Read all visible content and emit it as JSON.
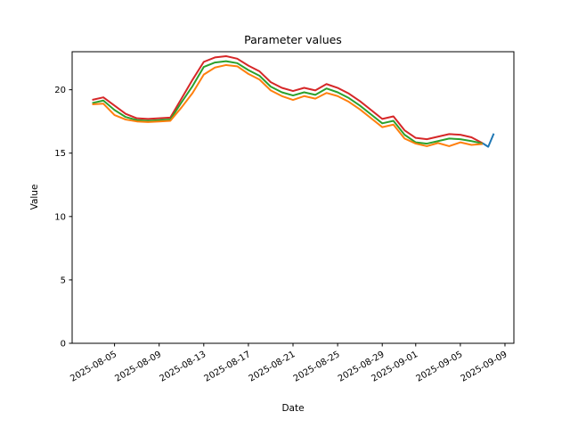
{
  "chart_data": {
    "type": "line",
    "title": "Parameter values",
    "xlabel": "Date",
    "ylabel": "Value",
    "ylim": [
      0,
      23
    ],
    "yticks": [
      0,
      5,
      10,
      15,
      20
    ],
    "xticks": [
      "2025-08-05",
      "2025-08-09",
      "2025-08-13",
      "2025-08-17",
      "2025-08-21",
      "2025-08-25",
      "2025-08-29",
      "2025-09-01",
      "2025-09-05",
      "2025-09-09"
    ],
    "xtick_rotation_deg": 30,
    "x_pad_days": 1.8,
    "grid": false,
    "legend": "none",
    "x_dates": [
      "2025-08-03",
      "2025-08-04",
      "2025-08-05",
      "2025-08-06",
      "2025-08-07",
      "2025-08-08",
      "2025-08-09",
      "2025-08-10",
      "2025-08-11",
      "2025-08-12",
      "2025-08-13",
      "2025-08-14",
      "2025-08-15",
      "2025-08-16",
      "2025-08-17",
      "2025-08-18",
      "2025-08-19",
      "2025-08-20",
      "2025-08-21",
      "2025-08-22",
      "2025-08-23",
      "2025-08-24",
      "2025-08-25",
      "2025-08-26",
      "2025-08-27",
      "2025-08-28",
      "2025-08-29",
      "2025-08-30",
      "2025-08-31",
      "2025-09-01",
      "2025-09-02",
      "2025-09-03",
      "2025-09-04",
      "2025-09-05",
      "2025-09-06",
      "2025-09-07"
    ],
    "series": [
      {
        "name": "red",
        "color": "#d62728",
        "values": [
          19.2,
          19.4,
          18.75,
          18.1,
          17.75,
          17.7,
          17.75,
          17.8,
          19.3,
          20.8,
          22.2,
          22.55,
          22.65,
          22.45,
          21.9,
          21.45,
          20.6,
          20.15,
          19.9,
          20.15,
          19.95,
          20.45,
          20.15,
          19.7,
          19.1,
          18.4,
          17.7,
          17.9,
          16.8,
          16.2,
          16.1,
          16.3,
          16.5,
          16.45,
          16.25,
          15.78
        ]
      },
      {
        "name": "green",
        "color": "#2ca02c",
        "values": [
          18.95,
          19.15,
          18.4,
          17.85,
          17.6,
          17.55,
          17.6,
          17.65,
          19.0,
          20.3,
          21.8,
          22.15,
          22.25,
          22.1,
          21.55,
          21.1,
          20.25,
          19.8,
          19.55,
          19.8,
          19.6,
          20.1,
          19.8,
          19.35,
          18.75,
          18.05,
          17.35,
          17.55,
          16.45,
          15.85,
          15.75,
          15.95,
          16.15,
          16.1,
          15.95,
          15.76
        ]
      },
      {
        "name": "orange",
        "color": "#ff7f0e",
        "values": [
          18.85,
          18.9,
          18.0,
          17.65,
          17.5,
          17.45,
          17.5,
          17.55,
          18.6,
          19.75,
          21.2,
          21.75,
          21.95,
          21.85,
          21.25,
          20.8,
          19.95,
          19.5,
          19.2,
          19.5,
          19.3,
          19.75,
          19.5,
          19.05,
          18.45,
          17.75,
          17.05,
          17.25,
          16.15,
          15.75,
          15.55,
          15.8,
          15.55,
          15.85,
          15.65,
          15.72
        ]
      },
      {
        "name": "blue",
        "color": "#1f77b4",
        "x_dates": [
          "2025-09-07",
          "2025-09-07 12:00",
          "2025-09-08"
        ],
        "values": [
          15.78,
          15.5,
          16.55
        ]
      }
    ]
  }
}
